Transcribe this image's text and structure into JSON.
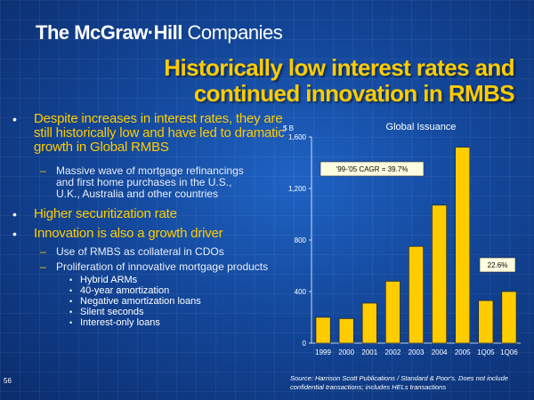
{
  "header": {
    "brand": "The McGraw·Hill",
    "suffix": "Companies"
  },
  "title": {
    "line1": "Historically low interest rates and",
    "line2": "continued innovation in RMBS"
  },
  "bullets": [
    {
      "text": "Despite increases in interest rates, they are still historically low and have led to  dramatic growth in Global RMBS",
      "sub": [
        {
          "text": "Massive wave of mortgage refinancings and first home purchases in the U.S., U.K., Australia and other countries"
        }
      ]
    },
    {
      "text": "Higher securitization rate",
      "sub": []
    },
    {
      "text": "Innovation is also a growth driver",
      "sub": [
        {
          "text": "Use of RMBS as collateral in CDOs"
        },
        {
          "text": "Proliferation of innovative mortgage products"
        }
      ],
      "subsub": [
        "Hybrid ARMs",
        "40-year amortization",
        "Negative amortization loans",
        "Silent seconds",
        "Interest-only loans"
      ]
    }
  ],
  "page_number": "56",
  "source": {
    "label": "Source:",
    "text": "Harrison Scott Publications / Standard & Poor's. Does not include confidential transactions; includes HELs transactions"
  },
  "colors": {
    "accent": "#ffcc00",
    "bar": "#ffcc00",
    "annotation_bg": "#fffde0"
  },
  "chart_data": {
    "type": "bar",
    "title": "Global Issuance",
    "ylabel": "$ B",
    "xlabel": "",
    "categories": [
      "1999",
      "2000",
      "2001",
      "2002",
      "2003",
      "2004",
      "2005",
      "1Q05",
      "1Q06"
    ],
    "values": [
      200,
      190,
      310,
      480,
      750,
      1070,
      1520,
      330,
      400
    ],
    "yticks": [
      0,
      400,
      800,
      1200,
      1600
    ],
    "ytick_labels": [
      "0",
      "400",
      "800",
      "1,200",
      "1,600"
    ],
    "ylim": [
      0,
      1600
    ],
    "grid": false,
    "annotations": [
      {
        "text": "'99-'05 CAGR = 39.7%"
      },
      {
        "text": "22.6%"
      }
    ]
  }
}
